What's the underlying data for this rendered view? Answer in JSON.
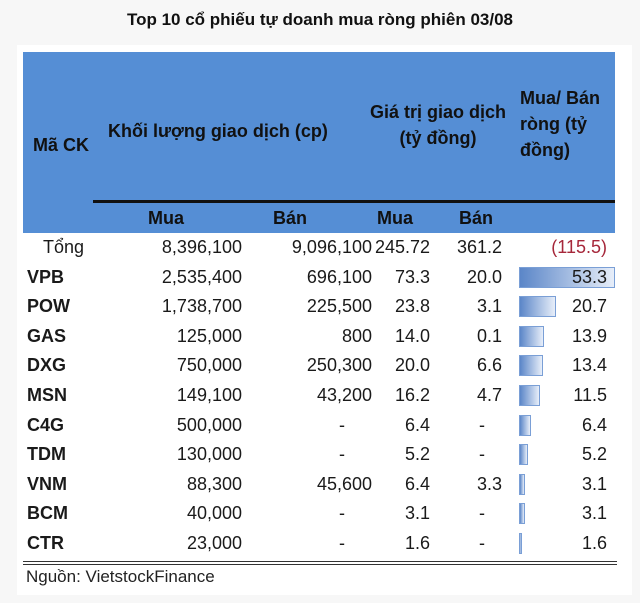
{
  "title": "Top 10 cổ phiếu tự doanh mua ròng phiên 03/08",
  "colors": {
    "header_bg": "#558ed5",
    "negative": "#a6273a",
    "bar_start": "#5b86c8",
    "bar_end": "#e7eef9"
  },
  "header": {
    "code": "Mã CK",
    "volume": "Khối lượng giao dịch (cp)",
    "value": "Giá trị giao dịch (tỷ đồng)",
    "net": "Mua/ Bán ròng (tỷ đồng)",
    "volume_buy": "Mua",
    "volume_sell": "Bán",
    "value_buy": "Mua",
    "value_sell": "Bán"
  },
  "total": {
    "label": "Tổng",
    "vol_buy": "8,396,100",
    "vol_sell": "9,096,100",
    "val_buy": "245.72",
    "val_sell": "361.2",
    "net": "(115.5)"
  },
  "rows": [
    {
      "code": "VPB",
      "vol_buy": "2,535,400",
      "vol_sell": "696,100",
      "val_buy": "73.3",
      "val_sell": "20.0",
      "net": "53.3"
    },
    {
      "code": "POW",
      "vol_buy": "1,738,700",
      "vol_sell": "225,500",
      "val_buy": "23.8",
      "val_sell": "3.1",
      "net": "20.7"
    },
    {
      "code": "GAS",
      "vol_buy": "125,000",
      "vol_sell": "800",
      "val_buy": "14.0",
      "val_sell": "0.1",
      "net": "13.9"
    },
    {
      "code": "DXG",
      "vol_buy": "750,000",
      "vol_sell": "250,300",
      "val_buy": "20.0",
      "val_sell": "6.6",
      "net": "13.4"
    },
    {
      "code": "MSN",
      "vol_buy": "149,100",
      "vol_sell": "43,200",
      "val_buy": "16.2",
      "val_sell": "4.7",
      "net": "11.5"
    },
    {
      "code": "C4G",
      "vol_buy": "500,000",
      "vol_sell": "-",
      "val_buy": "6.4",
      "val_sell": "-",
      "net": "6.4"
    },
    {
      "code": "TDM",
      "vol_buy": "130,000",
      "vol_sell": "-",
      "val_buy": "5.2",
      "val_sell": "-",
      "net": "5.2"
    },
    {
      "code": "VNM",
      "vol_buy": "88,300",
      "vol_sell": "45,600",
      "val_buy": "6.4",
      "val_sell": "3.3",
      "net": "3.1"
    },
    {
      "code": "BCM",
      "vol_buy": "40,000",
      "vol_sell": "-",
      "val_buy": "3.1",
      "val_sell": "-",
      "net": "3.1"
    },
    {
      "code": "CTR",
      "vol_buy": "23,000",
      "vol_sell": "-",
      "val_buy": "1.6",
      "val_sell": "-",
      "net": "1.6"
    }
  ],
  "net_bar_max": 53.3,
  "source": "Nguồn: VietstockFinance"
}
